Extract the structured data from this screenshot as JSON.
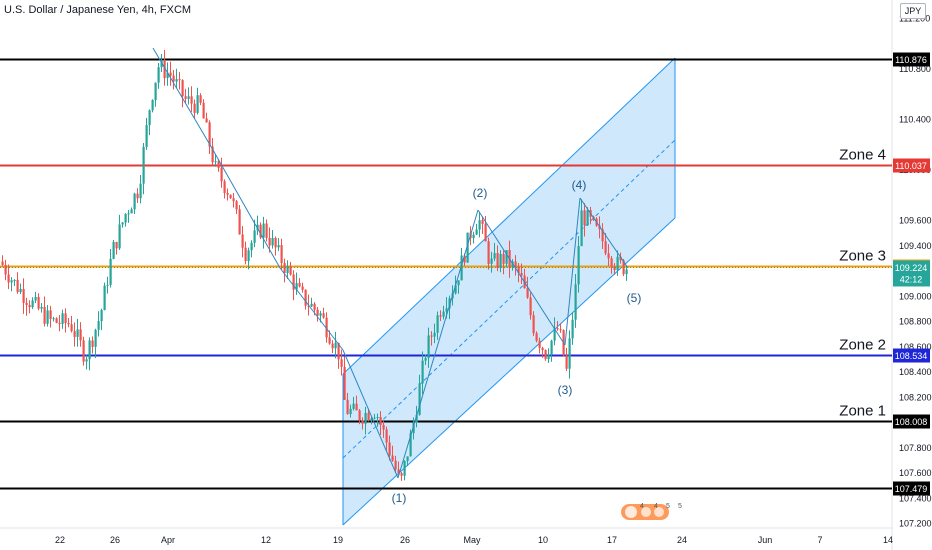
{
  "header": {
    "symbol": "U.S. Dollar / Japanese Yen, 4h, FXCM",
    "currency": "JPY"
  },
  "colors": {
    "up": "#26a69a",
    "down": "#ef5350",
    "channel_fill": "#bbdefb",
    "channel_line": "#2196f3"
  },
  "chart_data": {
    "type": "candlestick",
    "y_ticks": [
      "111.200",
      "110.800",
      "110.400",
      "110.000",
      "109.600",
      "109.400",
      "109.000",
      "108.800",
      "108.600",
      "108.400",
      "108.200",
      "107.800",
      "107.600",
      "107.400",
      "107.200"
    ],
    "x_ticks": [
      "22",
      "26",
      "Apr",
      "12",
      "19",
      "26",
      "May",
      "10",
      "17",
      "24",
      "Jun",
      "7",
      "14"
    ],
    "ylim": [
      107.1,
      111.35
    ],
    "price_path": [
      {
        "x": 0,
        "y": 109.27
      },
      {
        "x": 14,
        "y": 109.1
      },
      {
        "x": 30,
        "y": 108.95
      },
      {
        "x": 50,
        "y": 108.8
      },
      {
        "x": 70,
        "y": 108.78
      },
      {
        "x": 85,
        "y": 108.52
      },
      {
        "x": 100,
        "y": 108.85
      },
      {
        "x": 112,
        "y": 109.35
      },
      {
        "x": 125,
        "y": 109.65
      },
      {
        "x": 138,
        "y": 109.85
      },
      {
        "x": 150,
        "y": 110.55
      },
      {
        "x": 158,
        "y": 110.82
      },
      {
        "x": 170,
        "y": 110.75
      },
      {
        "x": 185,
        "y": 110.55
      },
      {
        "x": 200,
        "y": 110.5
      },
      {
        "x": 215,
        "y": 110.0
      },
      {
        "x": 230,
        "y": 109.8
      },
      {
        "x": 245,
        "y": 109.35
      },
      {
        "x": 262,
        "y": 109.55
      },
      {
        "x": 280,
        "y": 109.3
      },
      {
        "x": 300,
        "y": 109.0
      },
      {
        "x": 320,
        "y": 108.85
      },
      {
        "x": 338,
        "y": 108.55
      },
      {
        "x": 345,
        "y": 108.1
      },
      {
        "x": 360,
        "y": 108.05
      },
      {
        "x": 375,
        "y": 108.1
      },
      {
        "x": 390,
        "y": 107.75
      },
      {
        "x": 400,
        "y": 107.5
      },
      {
        "x": 412,
        "y": 107.95
      },
      {
        "x": 425,
        "y": 108.55
      },
      {
        "x": 440,
        "y": 108.9
      },
      {
        "x": 455,
        "y": 109.1
      },
      {
        "x": 470,
        "y": 109.5
      },
      {
        "x": 478,
        "y": 109.62
      },
      {
        "x": 490,
        "y": 109.25
      },
      {
        "x": 505,
        "y": 109.3
      },
      {
        "x": 520,
        "y": 109.15
      },
      {
        "x": 535,
        "y": 108.7
      },
      {
        "x": 545,
        "y": 108.55
      },
      {
        "x": 558,
        "y": 108.75
      },
      {
        "x": 566,
        "y": 108.4
      },
      {
        "x": 575,
        "y": 109.05
      },
      {
        "x": 580,
        "y": 109.65
      },
      {
        "x": 590,
        "y": 109.58
      },
      {
        "x": 605,
        "y": 109.4
      },
      {
        "x": 615,
        "y": 109.25
      },
      {
        "x": 628,
        "y": 109.22
      }
    ],
    "horizontal_levels": [
      {
        "value": 110.876,
        "label": "110.876",
        "color": "#000000"
      },
      {
        "value": 110.037,
        "label": "110.037",
        "color": "#e53935",
        "zone": "Zone 4"
      },
      {
        "value": 109.237,
        "label": "109.237",
        "color": "#ff9800",
        "zone": "Zone 3"
      },
      {
        "value": 108.534,
        "label": "108.534",
        "color": "#1e26d6",
        "zone": "Zone 2"
      },
      {
        "value": 108.008,
        "label": "108.008",
        "color": "#000000",
        "zone": "Zone 1"
      },
      {
        "value": 107.479,
        "label": "107.479",
        "color": "#000000"
      }
    ],
    "last_price": {
      "value": 109.224,
      "label": "109.224",
      "countdown": "42:12"
    },
    "wave_labels": [
      "(1)",
      "(2)",
      "(3)",
      "(4)",
      "(5)"
    ],
    "watermark_numbers": [
      "4",
      "4",
      "5",
      "5"
    ]
  }
}
